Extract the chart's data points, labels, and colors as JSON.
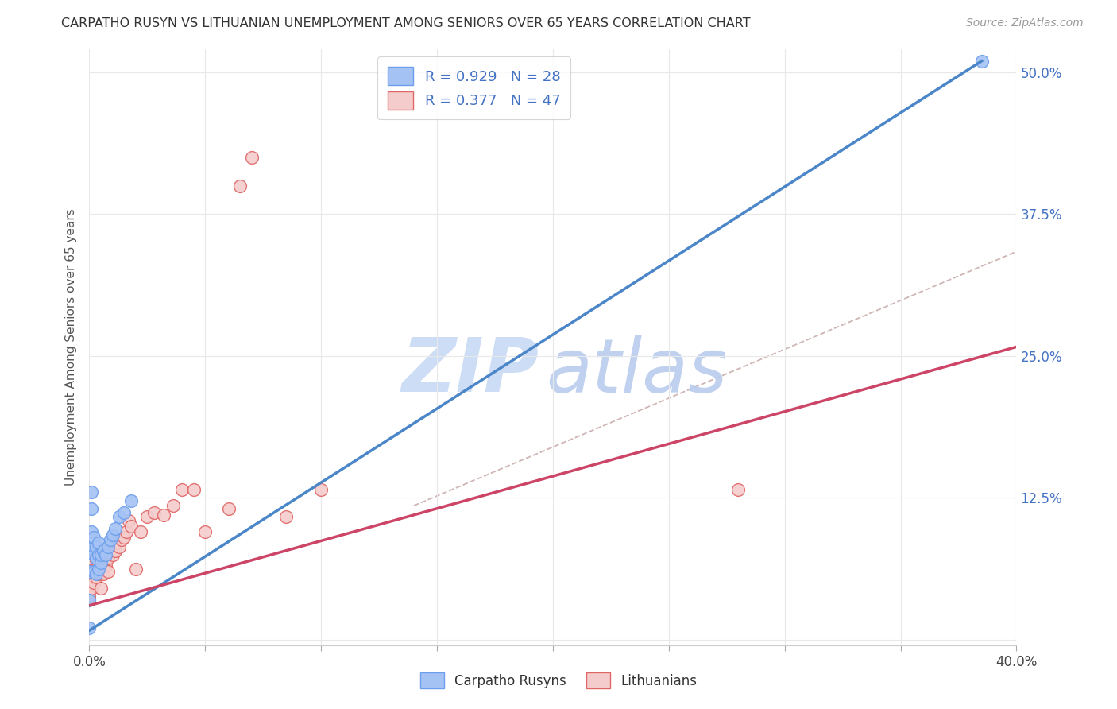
{
  "title": "CARPATHO RUSYN VS LITHUANIAN UNEMPLOYMENT AMONG SENIORS OVER 65 YEARS CORRELATION CHART",
  "source": "Source: ZipAtlas.com",
  "ylabel": "Unemployment Among Seniors over 65 years",
  "xlim": [
    0.0,
    0.4
  ],
  "ylim": [
    -0.005,
    0.52
  ],
  "yticks": [
    0.0,
    0.125,
    0.25,
    0.375,
    0.5
  ],
  "ytick_labels_right": [
    "",
    "12.5%",
    "25.0%",
    "37.5%",
    "50.0%"
  ],
  "xticks": [
    0.0,
    0.05,
    0.1,
    0.15,
    0.2,
    0.25,
    0.3,
    0.35,
    0.4
  ],
  "xtick_labels": [
    "0.0%",
    "",
    "",
    "",
    "",
    "",
    "",
    "",
    "40.0%"
  ],
  "color_blue_face": "#a4c2f4",
  "color_blue_edge": "#6d9eeb",
  "color_pink_face": "#f4cccc",
  "color_pink_edge": "#e06666",
  "line_blue": "#4a86c8",
  "line_pink": "#cc4466",
  "line_dashed_color": "#c8a8a8",
  "watermark_zip_color": "#ccddf5",
  "watermark_atlas_color": "#b8ccee",
  "axis_label_color": "#555555",
  "title_color": "#333333",
  "source_color": "#999999",
  "legend_text_color": "#4472c4",
  "grid_color": "#e8e8e8",
  "bg_color": "#ffffff",
  "carpatho_x": [
    0.0,
    0.0,
    0.0,
    0.001,
    0.001,
    0.001,
    0.001,
    0.002,
    0.002,
    0.002,
    0.003,
    0.003,
    0.003,
    0.004,
    0.004,
    0.004,
    0.005,
    0.005,
    0.006,
    0.007,
    0.008,
    0.009,
    0.01,
    0.011,
    0.013,
    0.015,
    0.018,
    0.385
  ],
  "carpatho_y": [
    0.035,
    0.06,
    0.01,
    0.08,
    0.095,
    0.115,
    0.13,
    0.06,
    0.075,
    0.09,
    0.058,
    0.072,
    0.082,
    0.062,
    0.075,
    0.085,
    0.068,
    0.075,
    0.078,
    0.075,
    0.082,
    0.088,
    0.092,
    0.098,
    0.108,
    0.112,
    0.122,
    0.51
  ],
  "lithuanian_x": [
    0.0,
    0.0,
    0.001,
    0.001,
    0.002,
    0.002,
    0.003,
    0.003,
    0.003,
    0.004,
    0.004,
    0.005,
    0.005,
    0.005,
    0.006,
    0.006,
    0.007,
    0.007,
    0.008,
    0.008,
    0.009,
    0.01,
    0.01,
    0.011,
    0.011,
    0.012,
    0.013,
    0.014,
    0.015,
    0.016,
    0.017,
    0.018,
    0.02,
    0.022,
    0.025,
    0.028,
    0.032,
    0.036,
    0.04,
    0.045,
    0.05,
    0.06,
    0.065,
    0.07,
    0.085,
    0.1,
    0.28
  ],
  "lithuanian_y": [
    0.038,
    0.048,
    0.045,
    0.055,
    0.05,
    0.062,
    0.055,
    0.062,
    0.07,
    0.058,
    0.068,
    0.045,
    0.06,
    0.072,
    0.058,
    0.068,
    0.065,
    0.075,
    0.072,
    0.06,
    0.078,
    0.075,
    0.085,
    0.078,
    0.09,
    0.085,
    0.082,
    0.088,
    0.09,
    0.095,
    0.105,
    0.1,
    0.062,
    0.095,
    0.108,
    0.112,
    0.11,
    0.118,
    0.132,
    0.132,
    0.095,
    0.115,
    0.4,
    0.425,
    0.108,
    0.132,
    0.132
  ],
  "blue_line_x": [
    0.0,
    0.385
  ],
  "blue_line_y": [
    0.008,
    0.51
  ],
  "pink_line_x": [
    0.0,
    0.4
  ],
  "pink_line_y": [
    0.03,
    0.258
  ],
  "dash_line_x": [
    0.14,
    0.4
  ],
  "dash_line_y": [
    0.118,
    0.342
  ]
}
